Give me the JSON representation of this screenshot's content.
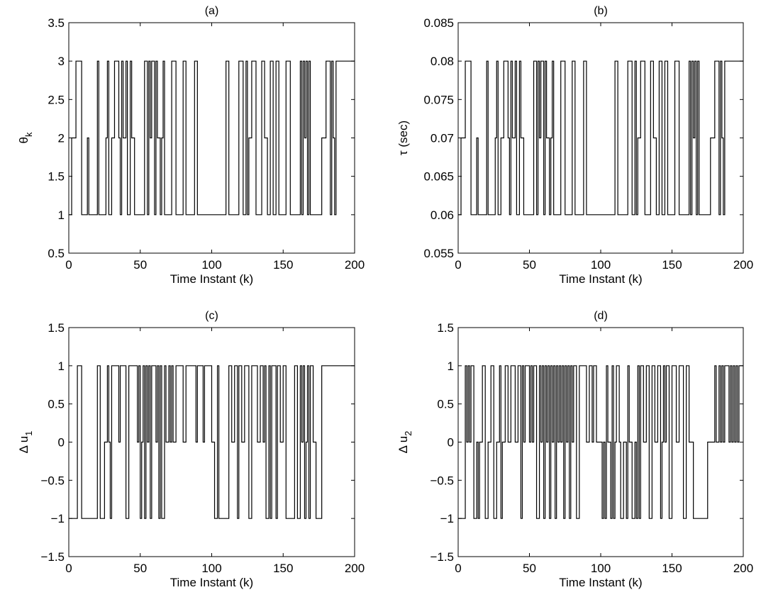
{
  "chart_data": [
    {
      "type": "line",
      "step": true,
      "title": "(a)",
      "xlabel": "Time Instant (k)",
      "ylabel": "θ",
      "ylabel_sub": "k",
      "xlim": [
        0,
        200
      ],
      "ylim": [
        0.5,
        3.5
      ],
      "xticks": [
        0,
        50,
        100,
        150,
        200
      ],
      "xtick_labels": [
        "0",
        "50",
        "100",
        "150",
        "200"
      ],
      "yticks": [
        0.5,
        1,
        1.5,
        2,
        2.5,
        3,
        3.5
      ],
      "ytick_labels": [
        "0.5",
        "1",
        "1.5",
        "2",
        "2.5",
        "3",
        "3.5"
      ],
      "grid": false,
      "series_color": "#000000",
      "x": [
        0,
        2,
        4,
        5,
        8,
        9,
        11,
        13,
        14,
        16,
        18,
        20,
        21,
        23,
        26,
        27,
        28,
        30,
        32,
        35,
        36,
        37,
        38,
        40,
        41,
        43,
        44,
        45,
        46,
        50,
        53,
        55,
        56,
        57,
        58,
        60,
        61,
        62,
        63,
        64,
        65,
        66,
        67,
        70,
        72,
        75,
        76,
        80,
        82,
        85,
        88,
        90,
        93,
        96,
        100,
        103,
        105,
        110,
        112,
        114,
        116,
        118,
        119,
        122,
        124,
        125,
        126,
        128,
        131,
        135,
        137,
        139,
        141,
        143,
        145,
        147,
        150,
        152,
        155,
        158,
        160,
        162,
        163,
        164,
        165,
        166,
        167,
        168,
        169,
        171,
        175,
        177,
        180,
        183,
        184,
        185,
        186,
        187,
        200
      ],
      "values": [
        1,
        2,
        2,
        3,
        3,
        1,
        1,
        2,
        1,
        1,
        1,
        3,
        1,
        1,
        2,
        3,
        1,
        2,
        3,
        2,
        1,
        3,
        2,
        3,
        1,
        3,
        2,
        2,
        1,
        1,
        3,
        1,
        3,
        2,
        3,
        1,
        3,
        2,
        2,
        1,
        2,
        3,
        1,
        1,
        3,
        1,
        1,
        3,
        1,
        1,
        3,
        1,
        1,
        1,
        1,
        1,
        1,
        3,
        1,
        1,
        1,
        1,
        3,
        1,
        3,
        1,
        2,
        3,
        1,
        3,
        2,
        1,
        3,
        1,
        3,
        1,
        1,
        3,
        1,
        1,
        1,
        3,
        1,
        3,
        2,
        3,
        1,
        3,
        1,
        1,
        1,
        2,
        3,
        1,
        3,
        2,
        1,
        3,
        3
      ]
    },
    {
      "type": "line",
      "step": true,
      "title": "(b)",
      "xlabel": "Time Instant (k)",
      "ylabel": "τ (sec)",
      "xlim": [
        0,
        200
      ],
      "ylim": [
        0.055,
        0.085
      ],
      "xticks": [
        0,
        50,
        100,
        150,
        200
      ],
      "xtick_labels": [
        "0",
        "50",
        "100",
        "150",
        "200"
      ],
      "yticks": [
        0.055,
        0.06,
        0.065,
        0.07,
        0.075,
        0.08,
        0.085
      ],
      "ytick_labels": [
        "0.055",
        "0.06",
        "0.065",
        "0.07",
        "0.075",
        "0.08",
        "0.085"
      ],
      "grid": false,
      "series_color": "#000000",
      "x": [
        0,
        2,
        4,
        5,
        8,
        9,
        11,
        13,
        14,
        16,
        18,
        20,
        21,
        23,
        26,
        27,
        28,
        30,
        32,
        35,
        36,
        37,
        38,
        40,
        41,
        43,
        44,
        45,
        46,
        50,
        53,
        55,
        56,
        57,
        58,
        60,
        61,
        62,
        63,
        64,
        65,
        66,
        67,
        70,
        72,
        75,
        76,
        80,
        82,
        85,
        88,
        90,
        93,
        96,
        100,
        103,
        105,
        110,
        112,
        114,
        116,
        118,
        119,
        122,
        124,
        125,
        126,
        128,
        131,
        135,
        137,
        139,
        141,
        143,
        145,
        147,
        150,
        152,
        155,
        158,
        160,
        162,
        163,
        164,
        165,
        166,
        167,
        168,
        169,
        171,
        175,
        177,
        180,
        183,
        184,
        185,
        186,
        187,
        200
      ],
      "values": [
        0.06,
        0.07,
        0.07,
        0.08,
        0.08,
        0.06,
        0.06,
        0.07,
        0.06,
        0.06,
        0.06,
        0.08,
        0.06,
        0.06,
        0.07,
        0.08,
        0.06,
        0.07,
        0.08,
        0.07,
        0.06,
        0.08,
        0.07,
        0.08,
        0.06,
        0.08,
        0.07,
        0.07,
        0.06,
        0.06,
        0.08,
        0.06,
        0.08,
        0.07,
        0.08,
        0.06,
        0.08,
        0.07,
        0.07,
        0.06,
        0.07,
        0.08,
        0.06,
        0.06,
        0.08,
        0.06,
        0.06,
        0.08,
        0.06,
        0.06,
        0.08,
        0.06,
        0.06,
        0.06,
        0.06,
        0.06,
        0.06,
        0.08,
        0.06,
        0.06,
        0.06,
        0.06,
        0.08,
        0.06,
        0.08,
        0.06,
        0.07,
        0.08,
        0.06,
        0.08,
        0.07,
        0.06,
        0.08,
        0.06,
        0.08,
        0.06,
        0.06,
        0.08,
        0.06,
        0.06,
        0.06,
        0.08,
        0.06,
        0.08,
        0.07,
        0.08,
        0.06,
        0.08,
        0.06,
        0.06,
        0.06,
        0.07,
        0.08,
        0.06,
        0.08,
        0.07,
        0.06,
        0.08,
        0.08
      ]
    },
    {
      "type": "line",
      "step": true,
      "title": "(c)",
      "xlabel": "Time Instant (k)",
      "ylabel": "Δ u",
      "ylabel_sub": "1",
      "xlim": [
        0,
        200
      ],
      "ylim": [
        -1.5,
        1.5
      ],
      "xticks": [
        0,
        50,
        100,
        150,
        200
      ],
      "xtick_labels": [
        "0",
        "50",
        "100",
        "150",
        "200"
      ],
      "yticks": [
        -1.5,
        -1,
        -0.5,
        0,
        0.5,
        1,
        1.5
      ],
      "ytick_labels": [
        "−1.5",
        "−1",
        "−0.5",
        "0",
        "0.5",
        "1",
        "1.5"
      ],
      "grid": false,
      "series_color": "#000000",
      "x": [
        0,
        6,
        9,
        10,
        17,
        20,
        22,
        23,
        25,
        26,
        27,
        28,
        29,
        30,
        32,
        35,
        36,
        37,
        40,
        42,
        43,
        45,
        48,
        49,
        50,
        51,
        52,
        53,
        54,
        55,
        56,
        57,
        58,
        60,
        61,
        62,
        63,
        64,
        65,
        67,
        68,
        70,
        71,
        72,
        73,
        75,
        76,
        78,
        80,
        82,
        84,
        88,
        89,
        90,
        92,
        94,
        95,
        97,
        100,
        102,
        104,
        105,
        110,
        112,
        114,
        116,
        118,
        119,
        121,
        123,
        126,
        128,
        130,
        132,
        134,
        136,
        137,
        138,
        140,
        141,
        142,
        145,
        146,
        148,
        150,
        152,
        155,
        158,
        160,
        162,
        163,
        164,
        165,
        166,
        167,
        168,
        169,
        171,
        173,
        175,
        177,
        180,
        200
      ],
      "values": [
        -1,
        1,
        -1,
        -1,
        -1,
        1,
        -1,
        -1,
        0,
        0,
        1,
        0,
        -1,
        1,
        1,
        0,
        1,
        1,
        -1,
        1,
        1,
        1,
        0,
        1,
        -1,
        0,
        1,
        -1,
        1,
        0,
        1,
        -1,
        1,
        1,
        0,
        1,
        -1,
        1,
        -1,
        1,
        0,
        1,
        0,
        1,
        0,
        1,
        1,
        1,
        0,
        1,
        1,
        1,
        0,
        1,
        1,
        0,
        1,
        1,
        0,
        -1,
        1,
        -1,
        -1,
        1,
        0,
        1,
        -1,
        1,
        0,
        1,
        -1,
        1,
        1,
        0,
        1,
        0,
        1,
        -1,
        1,
        -1,
        1,
        -1,
        1,
        0,
        1,
        -1,
        -1,
        1,
        -1,
        1,
        0,
        1,
        -1,
        0,
        1,
        -1,
        1,
        0,
        -1,
        -1,
        1,
        1,
        1
      ]
    },
    {
      "type": "line",
      "step": true,
      "title": "(d)",
      "xlabel": "Time Instant (k)",
      "ylabel": "Δ u",
      "ylabel_sub": "2",
      "xlim": [
        0,
        200
      ],
      "ylim": [
        -1.5,
        1.5
      ],
      "xticks": [
        0,
        50,
        100,
        150,
        200
      ],
      "xtick_labels": [
        "0",
        "50",
        "100",
        "150",
        "200"
      ],
      "yticks": [
        -1.5,
        -1,
        -0.5,
        0,
        0.5,
        1,
        1.5
      ],
      "ytick_labels": [
        "−1.5",
        "−1",
        "−0.5",
        "0",
        "0.5",
        "1",
        "1.5"
      ],
      "grid": false,
      "series_color": "#000000",
      "x": [
        0,
        5,
        6,
        7,
        8,
        9,
        11,
        13,
        14,
        15,
        17,
        19,
        21,
        23,
        25,
        27,
        29,
        30,
        31,
        33,
        35,
        37,
        40,
        42,
        44,
        45,
        46,
        47,
        49,
        50,
        51,
        52,
        53,
        55,
        57,
        58,
        59,
        60,
        61,
        62,
        63,
        64,
        65,
        66,
        67,
        68,
        69,
        70,
        71,
        72,
        73,
        74,
        75,
        76,
        77,
        78,
        79,
        80,
        81,
        83,
        85,
        87,
        90,
        92,
        94,
        95,
        97,
        100,
        101,
        102,
        103,
        104,
        105,
        107,
        108,
        109,
        110,
        111,
        113,
        114,
        116,
        118,
        119,
        120,
        122,
        124,
        125,
        126,
        127,
        128,
        130,
        132,
        134,
        136,
        138,
        140,
        142,
        143,
        144,
        145,
        146,
        148,
        150,
        153,
        155,
        158,
        160,
        162,
        165,
        170,
        175,
        177,
        180,
        181,
        183,
        184,
        185,
        186,
        187,
        188,
        190,
        191,
        192,
        193,
        194,
        195,
        196,
        197,
        198,
        200
      ],
      "values": [
        -1,
        1,
        0,
        1,
        0,
        1,
        -1,
        0,
        -1,
        0,
        1,
        -1,
        0,
        1,
        -1,
        0,
        1,
        -1,
        0,
        1,
        0,
        1,
        0,
        1,
        -1,
        1,
        0,
        1,
        1,
        0,
        1,
        0,
        1,
        -1,
        1,
        0,
        1,
        -1,
        1,
        0,
        1,
        -1,
        1,
        0,
        1,
        -1,
        1,
        0,
        1,
        0,
        1,
        -1,
        1,
        0,
        1,
        -1,
        1,
        0,
        1,
        -1,
        1,
        1,
        0,
        1,
        0,
        1,
        0,
        0,
        -1,
        0,
        -1,
        1,
        0,
        -1,
        1,
        -1,
        0,
        1,
        0,
        -1,
        0,
        -1,
        1,
        0,
        -1,
        0,
        -1,
        1,
        -1,
        1,
        0,
        1,
        -1,
        1,
        0,
        1,
        -1,
        0,
        1,
        0,
        1,
        -1,
        1,
        0,
        1,
        -1,
        1,
        0,
        -1,
        -1,
        0,
        0,
        1,
        0,
        1,
        0,
        1,
        0,
        1,
        1,
        0,
        1,
        0,
        1,
        0,
        1,
        0,
        1,
        1,
        1
      ]
    }
  ]
}
